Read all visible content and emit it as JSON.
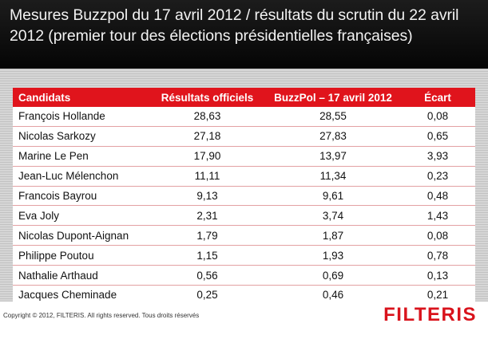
{
  "banner": {
    "title_line1": "Mesures Buzzpol du 17 avril 2012 / résultats du scrutin du 22 avril",
    "title_line2": "2012 (premier tour des élections présidentielles françaises)"
  },
  "table": {
    "headers": [
      "Candidats",
      "Résultats officiels",
      "BuzzPol – 17 avril 2012",
      "Écart"
    ],
    "rows": [
      [
        "François Hollande",
        "28,63",
        "28,55",
        "0,08"
      ],
      [
        "Nicolas Sarkozy",
        "27,18",
        "27,83",
        "0,65"
      ],
      [
        "Marine Le Pen",
        "17,90",
        "13,97",
        "3,93"
      ],
      [
        "Jean-Luc Mélenchon",
        "11,11",
        "11,34",
        "0,23"
      ],
      [
        "Francois Bayrou",
        "9,13",
        "9,61",
        "0,48"
      ],
      [
        "Eva Joly",
        "2,31",
        "3,74",
        "1,43"
      ],
      [
        "Nicolas Dupont-Aignan",
        "1,79",
        "1,87",
        "0,08"
      ],
      [
        "Philippe Poutou",
        "1,15",
        "1,93",
        "0,78"
      ],
      [
        "Nathalie Arthaud",
        "0,56",
        "0,69",
        "0,13"
      ],
      [
        "Jacques Cheminade",
        "0,25",
        "0,46",
        "0,21"
      ]
    ]
  },
  "footer": {
    "copyright": "Copyright © 2012, FILTERIS. All rights reserved. Tous droits réservés",
    "logo": "FILTERIS"
  },
  "colors": {
    "header_red": "#e0141c",
    "logo_red": "#d9131c",
    "banner_dark": "#111111"
  }
}
